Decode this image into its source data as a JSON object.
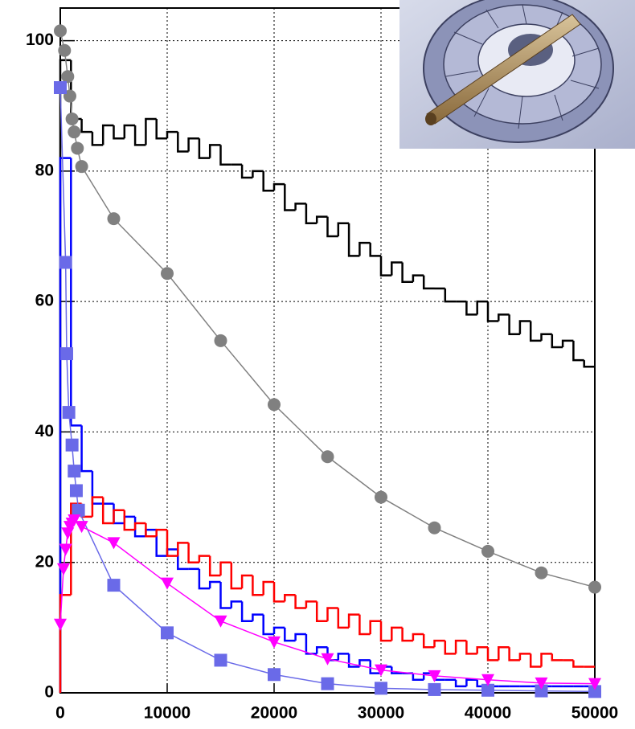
{
  "chart_data": [
    {
      "type": "histogram",
      "xlim": [
        0,
        50000
      ],
      "ylim": [
        0,
        105
      ],
      "xticks": [
        0,
        10000,
        20000,
        30000,
        40000,
        50000
      ],
      "yticks": [
        0,
        20,
        40,
        60,
        80,
        100
      ],
      "grid": true,
      "bins": [
        0,
        1000,
        2000,
        3000,
        4000,
        5000,
        6000,
        7000,
        8000,
        9000,
        10000,
        11000,
        12000,
        13000,
        14000,
        15000,
        16000,
        17000,
        18000,
        19000,
        20000,
        21000,
        22000,
        23000,
        24000,
        25000,
        26000,
        27000,
        28000,
        29000,
        30000,
        31000,
        32000,
        33000,
        34000,
        35000,
        36000,
        37000,
        38000,
        39000,
        40000,
        41000,
        42000,
        43000,
        44000,
        45000,
        46000,
        47000,
        48000,
        49000,
        50000
      ],
      "series": [
        {
          "color": "#000000",
          "values": [
            97,
            88,
            86,
            84,
            87,
            85,
            87,
            84,
            88,
            85,
            86,
            83,
            85,
            82,
            84,
            81,
            81,
            79,
            80,
            77,
            78,
            74,
            75,
            72,
            73,
            70,
            72,
            67,
            69,
            67,
            64,
            66,
            63,
            64,
            62,
            62,
            60,
            60,
            58,
            60,
            57,
            58,
            55,
            57,
            54,
            55,
            53,
            54,
            51,
            50
          ]
        },
        {
          "color": "#0000ff",
          "values": [
            82,
            41,
            34,
            29,
            29,
            26,
            27,
            24,
            25,
            21,
            22,
            19,
            19,
            16,
            17,
            13,
            14,
            11,
            12,
            9,
            10,
            8,
            9,
            6,
            7,
            5,
            6,
            4,
            5,
            3,
            4,
            3,
            3,
            2,
            3,
            2,
            2,
            1,
            2,
            1,
            1,
            1,
            1,
            1,
            1,
            1,
            1,
            1,
            1,
            1
          ]
        },
        {
          "color": "#ff0000",
          "values": [
            15,
            29,
            27,
            30,
            26,
            28,
            25,
            26,
            24,
            25,
            21,
            23,
            20,
            21,
            18,
            20,
            16,
            18,
            15,
            17,
            14,
            15,
            13,
            14,
            11,
            13,
            10,
            12,
            9,
            11,
            8,
            10,
            8,
            9,
            7,
            8,
            6,
            8,
            6,
            7,
            5,
            7,
            5,
            6,
            4,
            6,
            5,
            5,
            4,
            4
          ]
        }
      ]
    },
    {
      "type": "line",
      "series": [
        {
          "color": "#808080",
          "marker": "circle",
          "x": [
            0,
            400,
            700,
            900,
            1100,
            1300,
            1600,
            2000,
            5000,
            10000,
            15000,
            20000,
            25000,
            30000,
            35000,
            40000,
            45000,
            50000
          ],
          "values": [
            101.5,
            98.5,
            94.5,
            91.5,
            88,
            86,
            83.5,
            80.7,
            72.7,
            64.3,
            54,
            44.2,
            36.2,
            30,
            25.3,
            21.7,
            18.4,
            16.2
          ]
        },
        {
          "color": "#6a6ae8",
          "marker": "square",
          "x": [
            0,
            500,
            600,
            800,
            1100,
            1300,
            1500,
            1700,
            5000,
            10000,
            15000,
            20000,
            25000,
            30000,
            35000,
            40000,
            45000,
            50000
          ],
          "values": [
            92.8,
            66,
            52,
            43,
            38,
            34,
            31,
            28,
            16.5,
            9.2,
            5,
            2.8,
            1.4,
            0.7,
            0.5,
            0.4,
            0.3,
            0.2
          ]
        },
        {
          "color": "#ff00ff",
          "marker": "triangle-down",
          "x": [
            0,
            300,
            500,
            700,
            900,
            1100,
            1300,
            2000,
            5000,
            10000,
            15000,
            20000,
            25000,
            30000,
            35000,
            40000,
            45000,
            50000
          ],
          "values": [
            10.5,
            19,
            22,
            24.5,
            25.5,
            26,
            26.5,
            25.5,
            23,
            16.8,
            11,
            7.8,
            5.2,
            3.5,
            2.6,
            2,
            1.5,
            1.4
          ]
        }
      ]
    }
  ]
}
